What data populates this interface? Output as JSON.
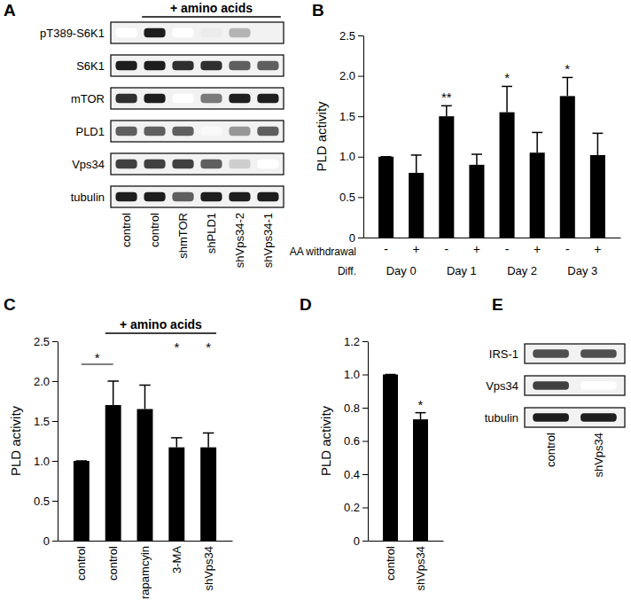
{
  "chart_data": [
    {
      "type": "bar",
      "title": "B",
      "y_label": "PLD activity",
      "categories": [
        "-",
        "+",
        "-",
        "+",
        "-",
        "+",
        "-",
        "+"
      ],
      "category_label": "AA withdrawal",
      "groups": {
        "label": "Diff.",
        "names": [
          "Day 0",
          "Day 1",
          "Day 2",
          "Day 3"
        ]
      },
      "values": [
        1.0,
        0.8,
        1.5,
        0.9,
        1.55,
        1.05,
        1.75,
        1.02
      ],
      "errors": [
        0,
        0.22,
        0.13,
        0.13,
        0.32,
        0.25,
        0.23,
        0.27
      ],
      "significance": [
        null,
        null,
        "**",
        null,
        "*",
        null,
        "*",
        null
      ],
      "color": "#000000",
      "ylim": [
        0,
        2.5
      ],
      "yticks": [
        0,
        0.5,
        {
          "value": 1,
          "label": "1.0"
        },
        1.5,
        {
          "value": 2,
          "label": "2.0"
        },
        2.5
      ]
    },
    {
      "type": "bar",
      "title": "C",
      "y_label": "PLD activity",
      "categories": [
        "control",
        "control",
        "rapamcyin",
        "3-MA",
        "shVps34"
      ],
      "values": [
        1.0,
        1.7,
        1.65,
        1.17,
        1.17
      ],
      "errors": [
        0,
        0.3,
        0.3,
        0.12,
        0.18
      ],
      "significance": [
        null,
        null,
        null,
        "*",
        "*"
      ],
      "comparison": {
        "from": 0,
        "to": 1,
        "label": "*"
      },
      "bracket": {
        "from": 1,
        "to": 4,
        "label": "+ amino acids"
      },
      "color": "#000000",
      "ylim": [
        0,
        2.5
      ],
      "yticks": [
        0,
        0.5,
        {
          "value": 1,
          "label": "1.0"
        },
        1.5,
        {
          "value": 2,
          "label": "2.0"
        },
        2.5
      ]
    },
    {
      "type": "bar",
      "title": "D",
      "y_label": "PLD activity",
      "categories": [
        "control",
        "shVps34"
      ],
      "values": [
        1.0,
        0.73
      ],
      "errors": [
        0,
        0.04
      ],
      "significance": [
        null,
        "*"
      ],
      "color": "#000000",
      "ylim": [
        0,
        1.2
      ],
      "yticks": [
        0,
        0.2,
        0.4,
        0.6,
        0.8,
        {
          "value": 1,
          "label": "1.0"
        },
        1.2
      ]
    }
  ],
  "blots": [
    {
      "title": "A",
      "rows": [
        "pT389-S6K1",
        "S6K1",
        "mTOR",
        "PLD1",
        "Vps34",
        "tubulin"
      ],
      "columns": [
        "control",
        "control",
        "shmTOR",
        "shPLD1",
        "shVps34-2",
        "shVps34-1"
      ],
      "bracket": {
        "from": 1,
        "to": 5,
        "label": "+ amino acids"
      },
      "intensity": [
        [
          0,
          0.9,
          0,
          0.15,
          0.4,
          0.1
        ],
        [
          0.9,
          0.9,
          0.85,
          0.85,
          0.7,
          0.7
        ],
        [
          0.85,
          0.9,
          0,
          0.6,
          0.9,
          0.9
        ],
        [
          0.7,
          0.7,
          0.7,
          0.05,
          0.5,
          0.7
        ],
        [
          0.8,
          0.8,
          0.8,
          0.7,
          0.3,
          0
        ],
        [
          0.9,
          0.9,
          0.7,
          0.9,
          0.9,
          0.9
        ]
      ]
    },
    {
      "title": "E",
      "rows": [
        "IRS-1",
        "Vps34",
        "tubulin"
      ],
      "columns": [
        "control",
        "shVps34"
      ],
      "intensity": [
        [
          0.75,
          0.75
        ],
        [
          0.8,
          0
        ],
        [
          0.9,
          0.9
        ]
      ]
    }
  ]
}
